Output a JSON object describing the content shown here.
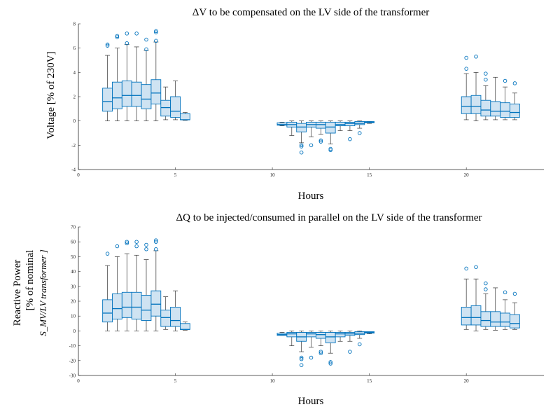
{
  "chart_data": [
    {
      "type": "box",
      "title": "ΔV to be compensated on the LV side of the transformer",
      "xlabel": "Hours",
      "ylabel": "Voltage [% of 230V]",
      "xlim": [
        0,
        24
      ],
      "ylim": [
        -4,
        8
      ],
      "xticks": [
        0,
        5,
        10,
        15,
        20
      ],
      "yticks": [
        -4,
        -2,
        0,
        2,
        4,
        6,
        8
      ],
      "grid": false,
      "box_color": "#0072bd",
      "box_fill": "#cfe3f2",
      "boxes": [
        {
          "x": 1.5,
          "min": 0,
          "q1": 0.8,
          "median": 1.6,
          "q3": 2.7,
          "max": 5.4,
          "outliers": [
            6.2,
            6.3
          ]
        },
        {
          "x": 2.0,
          "min": 0,
          "q1": 1.0,
          "median": 1.9,
          "q3": 3.2,
          "max": 6.0,
          "outliers": [
            6.9,
            7.0
          ]
        },
        {
          "x": 2.5,
          "min": 0,
          "q1": 1.2,
          "median": 2.1,
          "q3": 3.3,
          "max": 6.3,
          "outliers": [
            6.4,
            7.2
          ]
        },
        {
          "x": 3.0,
          "min": 0,
          "q1": 1.2,
          "median": 2.1,
          "q3": 3.2,
          "max": 6.1,
          "outliers": [
            7.2
          ]
        },
        {
          "x": 3.5,
          "min": 0,
          "q1": 1.0,
          "median": 1.8,
          "q3": 3.0,
          "max": 5.8,
          "outliers": [
            5.9,
            6.7
          ]
        },
        {
          "x": 4.0,
          "min": 0,
          "q1": 1.4,
          "median": 2.3,
          "q3": 3.4,
          "max": 6.5,
          "outliers": [
            6.6,
            7.3,
            7.4
          ]
        },
        {
          "x": 4.5,
          "min": 0.1,
          "q1": 0.4,
          "median": 1.1,
          "q3": 1.7,
          "max": 2.8,
          "outliers": []
        },
        {
          "x": 5.0,
          "min": 0.1,
          "q1": 0.3,
          "median": 0.8,
          "q3": 2.0,
          "max": 3.3,
          "outliers": []
        },
        {
          "x": 5.5,
          "min": 0.05,
          "q1": 0.1,
          "median": 0.1,
          "q3": 0.6,
          "max": 0.7,
          "outliers": []
        },
        {
          "x": 10.5,
          "min": -0.4,
          "q1": -0.35,
          "median": -0.3,
          "q3": -0.15,
          "max": -0.1,
          "outliers": []
        },
        {
          "x": 11.0,
          "min": -1.2,
          "q1": -0.5,
          "median": -0.3,
          "q3": -0.1,
          "max": 0,
          "outliers": []
        },
        {
          "x": 11.5,
          "min": -1.8,
          "q1": -0.9,
          "median": -0.5,
          "q3": -0.2,
          "max": 0,
          "outliers": [
            -2.0,
            -2.1,
            -2.6
          ]
        },
        {
          "x": 12.0,
          "min": -1.3,
          "q1": -0.5,
          "median": -0.3,
          "q3": -0.1,
          "max": 0,
          "outliers": [
            -2.0
          ]
        },
        {
          "x": 12.5,
          "min": -1.1,
          "q1": -0.6,
          "median": -0.3,
          "q3": -0.1,
          "max": 0,
          "outliers": [
            -1.6,
            -1.7
          ]
        },
        {
          "x": 13.0,
          "min": -1.9,
          "q1": -1.0,
          "median": -0.5,
          "q3": -0.1,
          "max": 0,
          "outliers": [
            -2.3,
            -2.4
          ]
        },
        {
          "x": 13.5,
          "min": -0.8,
          "q1": -0.4,
          "median": -0.3,
          "q3": -0.1,
          "max": 0,
          "outliers": []
        },
        {
          "x": 14.0,
          "min": -0.8,
          "q1": -0.4,
          "median": -0.2,
          "q3": -0.1,
          "max": 0,
          "outliers": [
            -1.5
          ]
        },
        {
          "x": 14.5,
          "min": -0.6,
          "q1": -0.3,
          "median": -0.2,
          "q3": -0.05,
          "max": 0,
          "outliers": [
            -1.0
          ]
        },
        {
          "x": 15.0,
          "min": -0.2,
          "q1": -0.15,
          "median": -0.1,
          "q3": -0.05,
          "max": -0.05,
          "outliers": []
        },
        {
          "x": 20.0,
          "min": 0.1,
          "q1": 0.6,
          "median": 1.2,
          "q3": 2.0,
          "max": 3.9,
          "outliers": [
            4.3,
            5.2
          ]
        },
        {
          "x": 20.5,
          "min": 0,
          "q1": 0.6,
          "median": 1.2,
          "q3": 2.1,
          "max": 4.0,
          "outliers": [
            5.3
          ]
        },
        {
          "x": 21.0,
          "min": 0.1,
          "q1": 0.4,
          "median": 0.9,
          "q3": 1.7,
          "max": 2.9,
          "outliers": [
            3.4,
            3.9
          ]
        },
        {
          "x": 21.5,
          "min": 0.1,
          "q1": 0.4,
          "median": 0.8,
          "q3": 1.6,
          "max": 3.6,
          "outliers": []
        },
        {
          "x": 22.0,
          "min": 0.1,
          "q1": 0.3,
          "median": 0.8,
          "q3": 1.5,
          "max": 2.8,
          "outliers": [
            3.3
          ]
        },
        {
          "x": 22.5,
          "min": 0.1,
          "q1": 0.3,
          "median": 0.7,
          "q3": 1.4,
          "max": 2.3,
          "outliers": [
            3.1
          ]
        }
      ]
    },
    {
      "type": "box",
      "title": "ΔQ to be injected/consumed in parallel on the LV side of the transformer",
      "xlabel": "Hours",
      "ylabel": [
        "Reactive Power",
        "[% of nominal"
      ],
      "ylabel_math": "S_MV/LV transformer ]",
      "xlim": [
        0,
        24
      ],
      "ylim": [
        -30,
        70
      ],
      "xticks": [
        0,
        5,
        10,
        15,
        20
      ],
      "yticks": [
        -30,
        -20,
        -10,
        0,
        10,
        20,
        30,
        40,
        50,
        60,
        70
      ],
      "grid": false,
      "box_color": "#0072bd",
      "box_fill": "#cfe3f2",
      "boxes": [
        {
          "x": 1.5,
          "min": 0,
          "q1": 6,
          "median": 12,
          "q3": 21,
          "max": 44,
          "outliers": [
            52
          ]
        },
        {
          "x": 2.0,
          "min": 0,
          "q1": 8,
          "median": 15,
          "q3": 25,
          "max": 50,
          "outliers": [
            57
          ]
        },
        {
          "x": 2.5,
          "min": 0,
          "q1": 9,
          "median": 16,
          "q3": 26,
          "max": 52,
          "outliers": [
            59,
            60
          ]
        },
        {
          "x": 3.0,
          "min": 0,
          "q1": 8,
          "median": 16,
          "q3": 26,
          "max": 51,
          "outliers": [
            57,
            60
          ]
        },
        {
          "x": 3.5,
          "min": 0,
          "q1": 7,
          "median": 14,
          "q3": 24,
          "max": 48,
          "outliers": [
            55,
            58
          ]
        },
        {
          "x": 4.0,
          "min": 0,
          "q1": 10,
          "median": 18,
          "q3": 27,
          "max": 54,
          "outliers": [
            55,
            60,
            61
          ]
        },
        {
          "x": 4.5,
          "min": 1,
          "q1": 3,
          "median": 9,
          "q3": 14,
          "max": 23,
          "outliers": []
        },
        {
          "x": 5.0,
          "min": 0,
          "q1": 3,
          "median": 7,
          "q3": 16,
          "max": 27,
          "outliers": []
        },
        {
          "x": 5.5,
          "min": 0.5,
          "q1": 1,
          "median": 1,
          "q3": 5,
          "max": 6,
          "outliers": []
        },
        {
          "x": 10.5,
          "min": -3,
          "q1": -3,
          "median": -2.5,
          "q3": -1.5,
          "max": -1,
          "outliers": []
        },
        {
          "x": 11.0,
          "min": -10,
          "q1": -4,
          "median": -2,
          "q3": -1,
          "max": 0,
          "outliers": []
        },
        {
          "x": 11.5,
          "min": -14,
          "q1": -7,
          "median": -4,
          "q3": -1,
          "max": 0,
          "outliers": [
            -18,
            -19,
            -23
          ]
        },
        {
          "x": 12.0,
          "min": -11,
          "q1": -4,
          "median": -2,
          "q3": -1,
          "max": 0,
          "outliers": [
            -18
          ]
        },
        {
          "x": 12.5,
          "min": -10,
          "q1": -5,
          "median": -2.5,
          "q3": -1,
          "max": 0,
          "outliers": [
            -14,
            -15
          ]
        },
        {
          "x": 13.0,
          "min": -15,
          "q1": -8,
          "median": -4,
          "q3": -1,
          "max": 0,
          "outliers": [
            -21,
            -22
          ]
        },
        {
          "x": 13.5,
          "min": -7,
          "q1": -4,
          "median": -2,
          "q3": -1,
          "max": 0,
          "outliers": []
        },
        {
          "x": 14.0,
          "min": -7,
          "q1": -3,
          "median": -2,
          "q3": -1,
          "max": 0,
          "outliers": [
            -14
          ]
        },
        {
          "x": 14.5,
          "min": -5,
          "q1": -2.5,
          "median": -1.5,
          "q3": -0.5,
          "max": 0,
          "outliers": [
            -9
          ]
        },
        {
          "x": 15.0,
          "min": -2,
          "q1": -1.5,
          "median": -1,
          "q3": -0.5,
          "max": -0.5,
          "outliers": []
        },
        {
          "x": 20.0,
          "min": 1,
          "q1": 4,
          "median": 9,
          "q3": 16,
          "max": 35,
          "outliers": [
            42
          ]
        },
        {
          "x": 20.5,
          "min": 0,
          "q1": 4,
          "median": 9,
          "q3": 17,
          "max": 35,
          "outliers": [
            43
          ]
        },
        {
          "x": 21.0,
          "min": 1,
          "q1": 3,
          "median": 7,
          "q3": 13,
          "max": 25,
          "outliers": [
            28,
            32
          ]
        },
        {
          "x": 21.5,
          "min": 0.5,
          "q1": 3,
          "median": 6,
          "q3": 13,
          "max": 29,
          "outliers": []
        },
        {
          "x": 22.0,
          "min": 1,
          "q1": 3,
          "median": 6,
          "q3": 12,
          "max": 21,
          "outliers": [
            26
          ]
        },
        {
          "x": 22.5,
          "min": 1,
          "q1": 2,
          "median": 5,
          "q3": 11,
          "max": 19,
          "outliers": [
            25
          ]
        }
      ]
    }
  ]
}
